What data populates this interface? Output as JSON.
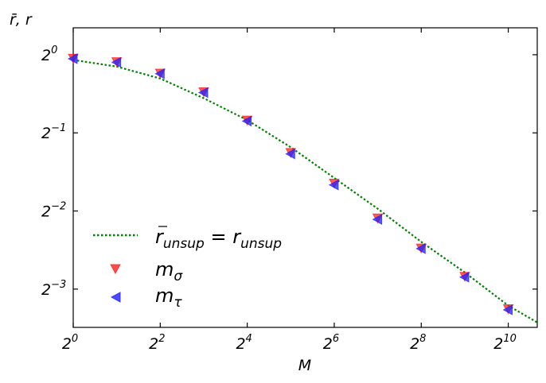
{
  "chart_data": {
    "type": "scatter",
    "title": "",
    "xlabel": "M",
    "ylabel": "r̄, r",
    "xscale": "log2",
    "yscale": "log2",
    "xlim": [
      1,
      1625
    ],
    "ylim": [
      0.089,
      1.27
    ],
    "x_ticks": [
      {
        "base": "2",
        "exp": "0"
      },
      {
        "base": "2",
        "exp": "2"
      },
      {
        "base": "2",
        "exp": "4"
      },
      {
        "base": "2",
        "exp": "6"
      },
      {
        "base": "2",
        "exp": "8"
      },
      {
        "base": "2",
        "exp": "10"
      }
    ],
    "x_tick_values": [
      1,
      4,
      16,
      64,
      256,
      1024
    ],
    "y_ticks": [
      {
        "base": "2",
        "exp": "0"
      },
      {
        "base": "2",
        "exp": "−1"
      },
      {
        "base": "2",
        "exp": "−2"
      },
      {
        "base": "2",
        "exp": "−3"
      }
    ],
    "y_tick_values": [
      1,
      0.5,
      0.25,
      0.125
    ],
    "grid": false,
    "legend_position": "bottom-left",
    "series": [
      {
        "name": "r̄unsup = runsup",
        "legend_parts": {
          "bar": "r",
          "sub1": "unsup",
          "eq": " = ",
          "main2": "r",
          "sub2": "unsup"
        },
        "style": "dotted-line",
        "color": "#008000",
        "x": [
          1,
          2,
          4,
          8,
          16,
          32,
          64,
          128,
          256,
          512,
          1024,
          1625
        ],
        "y": [
          0.955,
          0.9,
          0.81,
          0.68,
          0.56,
          0.44,
          0.335,
          0.255,
          0.19,
          0.145,
          0.108,
          0.093
        ]
      },
      {
        "name": "mσ",
        "legend_parts": {
          "main": "m",
          "sub": "σ"
        },
        "marker": "triangle-down",
        "color": "#ff2020",
        "x": [
          1,
          2,
          4,
          8,
          16,
          32,
          64,
          128,
          256,
          512,
          1024
        ],
        "y": [
          0.97,
          0.94,
          0.85,
          0.72,
          0.56,
          0.42,
          0.32,
          0.235,
          0.18,
          0.14,
          0.105
        ]
      },
      {
        "name": "mτ",
        "legend_parts": {
          "main": "m",
          "sub": "τ"
        },
        "marker": "triangle-left",
        "color": "#2020ff",
        "x": [
          1,
          2,
          4,
          8,
          16,
          32,
          64,
          128,
          256,
          512,
          1024
        ],
        "y": [
          0.965,
          0.935,
          0.845,
          0.715,
          0.555,
          0.415,
          0.315,
          0.232,
          0.179,
          0.139,
          0.104
        ]
      }
    ]
  }
}
